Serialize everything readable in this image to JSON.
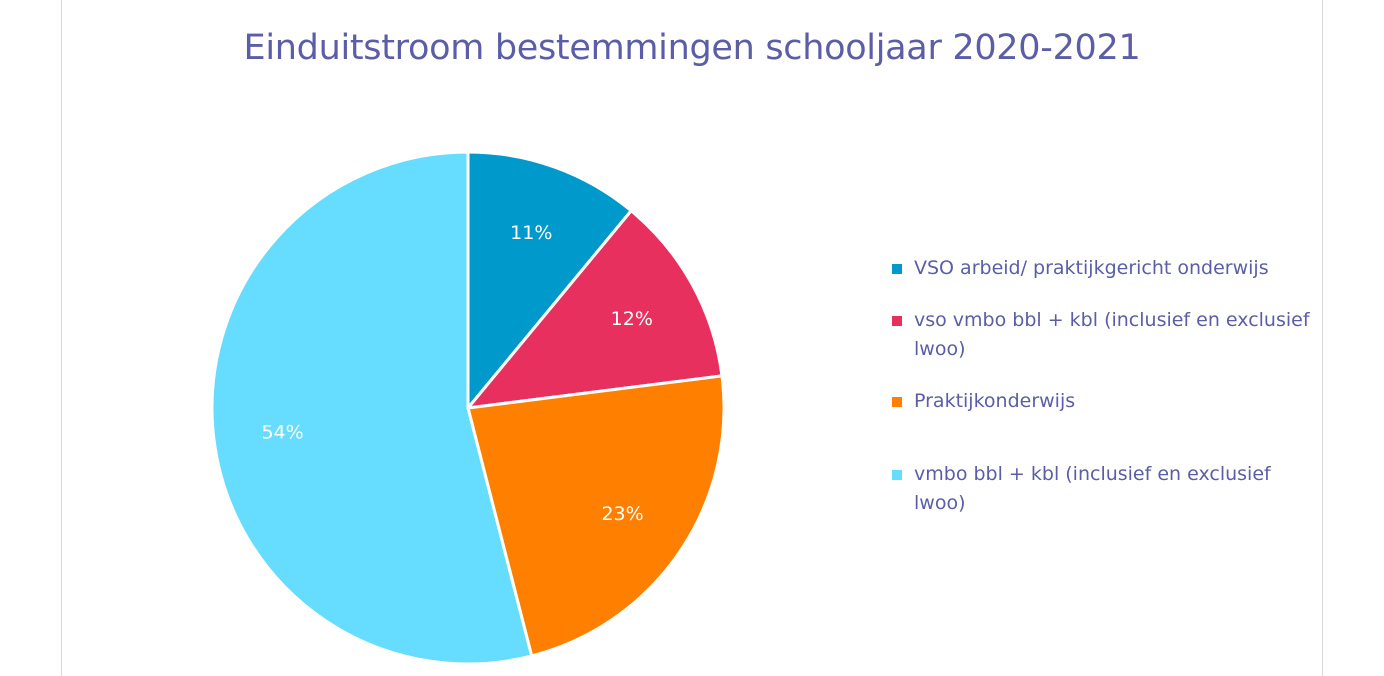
{
  "chart_data": {
    "type": "pie",
    "title": "Einduitstroom bestemmingen schooljaar 2020-2021",
    "legend_position": "right",
    "slices": [
      {
        "label": "VSO arbeid/ praktijkgericht onderwijs",
        "value": 11,
        "display": "11%",
        "color": "#0099cc"
      },
      {
        "label": "vso vmbo bbl + kbl (inclusief en exclusief lwoo)",
        "value": 12,
        "display": "12%",
        "color": "#e8305e"
      },
      {
        "label": "Praktijkonderwijs",
        "value": 23,
        "display": "23%",
        "color": "#ff8000"
      },
      {
        "label": "vmbo bbl + kbl (inclusief en exclusief lwoo)",
        "value": 54,
        "display": "54%",
        "color": "#66ddff"
      }
    ]
  }
}
